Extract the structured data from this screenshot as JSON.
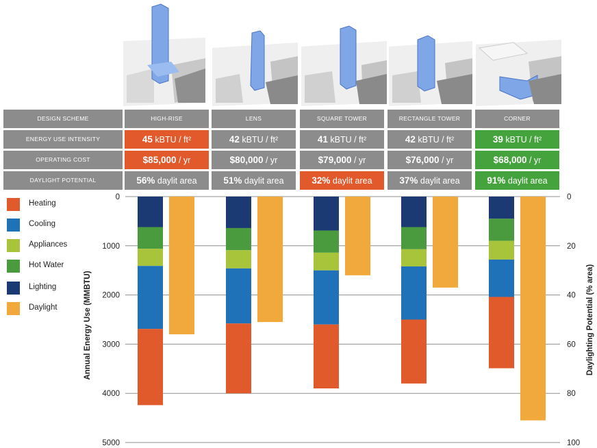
{
  "table": {
    "row_labels": [
      "DESIGN SCHEME",
      "ENERGY USE INTENSITY",
      "OPERATING COST",
      "DAYLIGHT POTENTIAL"
    ],
    "schemes": [
      {
        "name": "HIGH-RISE",
        "eui_value": "45",
        "eui_unit": "kBTU / ft²",
        "cost_value": "$85,000",
        "cost_unit": "/ yr",
        "daylight_value": "56%",
        "daylight_unit": "daylit area",
        "eui_color": "orange",
        "cost_color": "orange",
        "daylight_color": "grey"
      },
      {
        "name": "LENS",
        "eui_value": "42",
        "eui_unit": "kBTU / ft²",
        "cost_value": "$80,000",
        "cost_unit": "/ yr",
        "daylight_value": "51%",
        "daylight_unit": "daylit area",
        "eui_color": "grey",
        "cost_color": "grey",
        "daylight_color": "grey"
      },
      {
        "name": "SQUARE TOWER",
        "eui_value": "41",
        "eui_unit": "kBTU / ft²",
        "cost_value": "$79,000",
        "cost_unit": "/ yr",
        "daylight_value": "32%",
        "daylight_unit": "daylit area",
        "eui_color": "grey",
        "cost_color": "grey",
        "daylight_color": "orange"
      },
      {
        "name": "RECTANGLE TOWER",
        "eui_value": "42",
        "eui_unit": "kBTU / ft²",
        "cost_value": "$76,000",
        "cost_unit": "/ yr",
        "daylight_value": "37%",
        "daylight_unit": "daylit area",
        "eui_color": "grey",
        "cost_color": "grey",
        "daylight_color": "grey"
      },
      {
        "name": "CORNER",
        "eui_value": "39",
        "eui_unit": "kBTU / ft²",
        "cost_value": "$68,000",
        "cost_unit": "/ yr",
        "daylight_value": "91%",
        "daylight_unit": "daylit area",
        "eui_color": "green",
        "cost_color": "green",
        "daylight_color": "green"
      }
    ]
  },
  "colors": {
    "grey_cell": "#8c8c8c",
    "orange_cell": "#e2592c",
    "green_cell": "#44a33c",
    "building": "#7fa6e6"
  },
  "chart_data": {
    "type": "bar",
    "stacked": true,
    "inverted_y": true,
    "categories": [
      "HIGH-RISE",
      "LENS",
      "SQUARE TOWER",
      "RECTANGLE TOWER",
      "CORNER"
    ],
    "series": [
      {
        "name": "Lighting",
        "axis": "left",
        "color": "#1b3a73",
        "values": [
          620,
          640,
          690,
          620,
          450
        ]
      },
      {
        "name": "Hot Water",
        "axis": "left",
        "color": "#4a9a3e",
        "values": [
          440,
          450,
          450,
          450,
          450
        ]
      },
      {
        "name": "Appliances",
        "axis": "left",
        "color": "#a8c43a",
        "values": [
          350,
          370,
          360,
          350,
          380
        ]
      },
      {
        "name": "Cooling",
        "axis": "left",
        "color": "#1f72b8",
        "values": [
          1280,
          1120,
          1100,
          1080,
          760
        ]
      },
      {
        "name": "Heating",
        "axis": "left",
        "color": "#e05a2b",
        "values": [
          1550,
          1420,
          1300,
          1300,
          1450
        ]
      },
      {
        "name": "Daylight",
        "axis": "right",
        "color": "#f2a93b",
        "values": [
          56,
          51,
          32,
          37,
          91
        ]
      }
    ],
    "legend": [
      "Heating",
      "Cooling",
      "Appliances",
      "Hot Water",
      "Lighting",
      "Daylight"
    ],
    "legend_position": "left",
    "ylabel": "Annual Energy Use (MMBTU)",
    "y2label": "Daylighting Potential (% area)",
    "ylim": [
      0,
      5000
    ],
    "y2lim": [
      0,
      100
    ],
    "yticks": [
      0,
      1000,
      2000,
      3000,
      4000,
      5000
    ],
    "y2ticks": [
      0,
      20,
      40,
      60,
      80,
      100
    ],
    "grid": true
  }
}
